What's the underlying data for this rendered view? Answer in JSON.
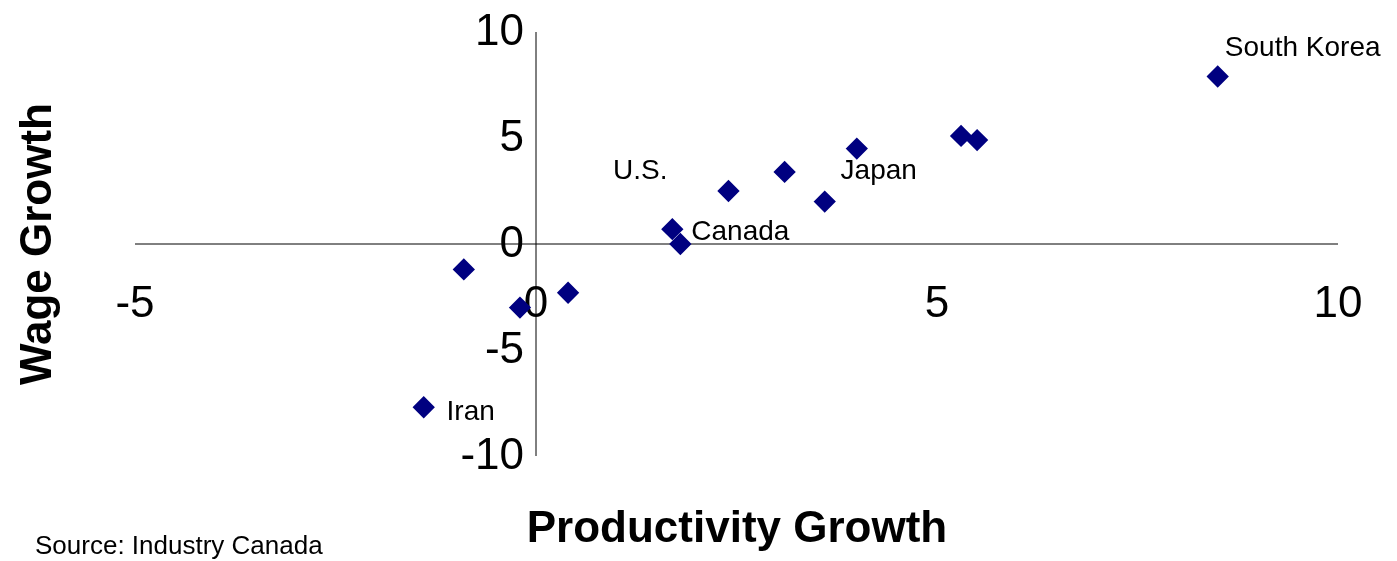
{
  "chart_data": {
    "type": "scatter",
    "xlabel": "Productivity Growth",
    "ylabel": "Wage Growth",
    "x": [
      8.5,
      5.3,
      5.5,
      4.0,
      3.6,
      3.1,
      2.4,
      1.7,
      1.8,
      0.4,
      -0.2,
      -0.9,
      -1.4
    ],
    "series": [
      {
        "color": "#000080",
        "values": [
          7.9,
          5.1,
          4.9,
          4.5,
          2.0,
          3.4,
          2.5,
          0.7,
          0.0,
          -2.3,
          -3.0,
          -1.2,
          -7.7
        ]
      }
    ],
    "marker": "diamond",
    "grid": false,
    "xlim": [
      -5,
      10
    ],
    "ylim": [
      -10,
      10
    ],
    "xticks": [
      -5,
      0,
      5,
      10
    ],
    "yticks": [
      -10,
      -5,
      0,
      5,
      10
    ],
    "annotations": [
      {
        "text": "South Korea",
        "x": 8.5,
        "y": 7.9
      },
      {
        "text": "Japan",
        "x": 3.6,
        "y": 2.0
      },
      {
        "text": "U.S.",
        "x": 1.7,
        "y": 0.7
      },
      {
        "text": "Canada",
        "x": 1.8,
        "y": 0.0
      },
      {
        "text": "Iran",
        "x": -1.4,
        "y": -7.7
      },
      "Source:  Industry Canada"
    ]
  }
}
